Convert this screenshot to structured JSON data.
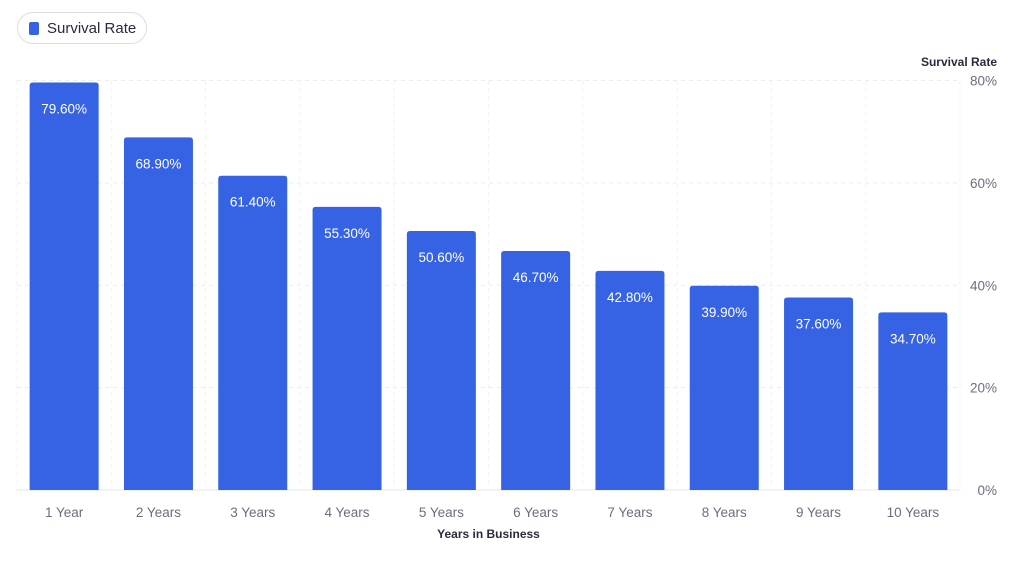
{
  "legend": {
    "label": "Survival Rate",
    "color": "#3563e3"
  },
  "chart_data": {
    "type": "bar",
    "categories": [
      "1 Year",
      "2 Years",
      "3 Years",
      "4 Years",
      "5 Years",
      "6 Years",
      "7 Years",
      "8 Years",
      "9 Years",
      "10 Years"
    ],
    "series": [
      {
        "name": "Survival Rate",
        "values": [
          79.6,
          68.9,
          61.4,
          55.3,
          50.6,
          46.7,
          42.8,
          39.9,
          37.6,
          34.7
        ],
        "labels": [
          "79.60%",
          "68.90%",
          "61.40%",
          "55.30%",
          "50.60%",
          "46.70%",
          "42.80%",
          "39.90%",
          "37.60%",
          "34.70%"
        ],
        "color": "#3563e3"
      }
    ],
    "xlabel": "Years in Business",
    "ylabel": "Survival Rate",
    "ylim": [
      0,
      80
    ],
    "yticks": [
      0,
      20,
      40,
      60,
      80
    ],
    "ytick_labels": [
      "0%",
      "20%",
      "40%",
      "60%",
      "80%"
    ],
    "y_axis_side": "right",
    "grid": true,
    "legend_position": "top-left"
  }
}
